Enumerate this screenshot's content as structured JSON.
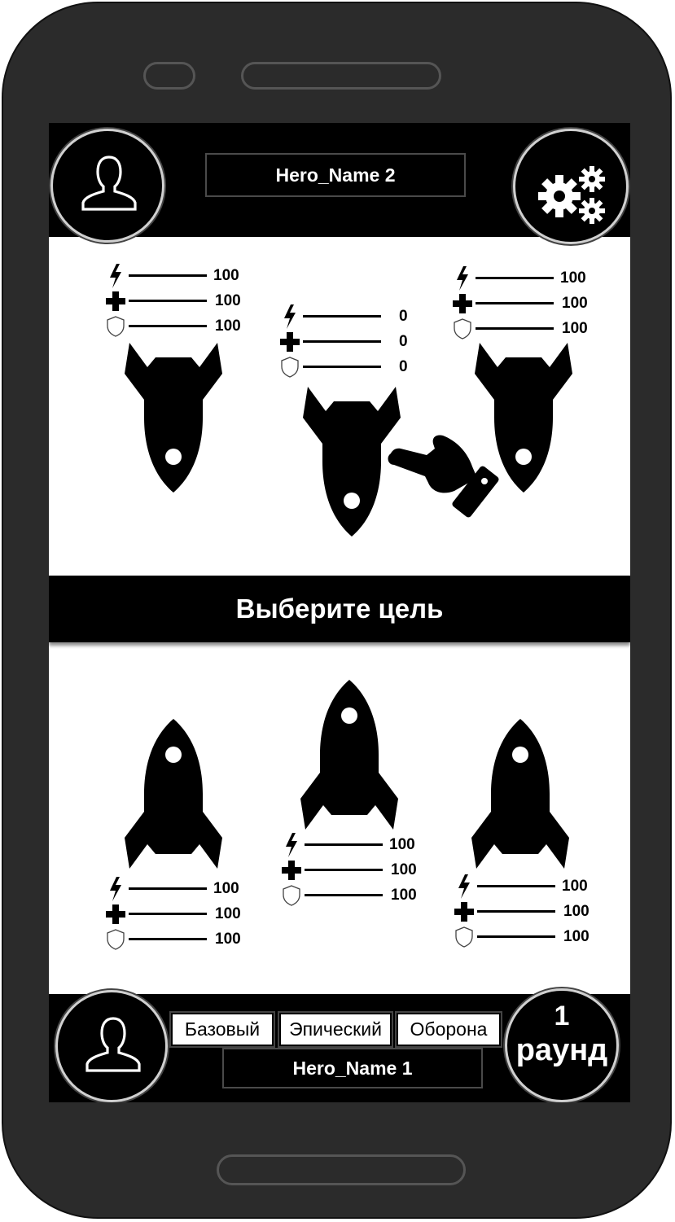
{
  "opponent": {
    "name": "Hero_Name 2"
  },
  "player": {
    "name": "Hero_Name 1"
  },
  "banner": {
    "text": "Выберите цель"
  },
  "enemy_ships": [
    {
      "attack": "100",
      "health": "100",
      "defense": "100"
    },
    {
      "attack": "0",
      "health": "0",
      "defense": "0"
    },
    {
      "attack": "100",
      "health": "100",
      "defense": "100"
    }
  ],
  "player_ships": [
    {
      "attack": "100",
      "health": "100",
      "defense": "100"
    },
    {
      "attack": "100",
      "health": "100",
      "defense": "100"
    },
    {
      "attack": "100",
      "health": "100",
      "defense": "100"
    }
  ],
  "attack_modes": {
    "basic": "Базовый",
    "epic": "Эпический",
    "defense": "Оборона"
  },
  "round": {
    "number": "1",
    "label": "раунд"
  },
  "icons": {
    "attack": "lightning-icon",
    "health": "plus-icon",
    "defense": "shield-icon",
    "profile": "user-icon",
    "settings": "gears-icon",
    "pointer": "pointing-hand-icon",
    "ship": "rocket-icon"
  },
  "colors": {
    "bar": "#000000",
    "screen": "#ffffff",
    "phone": "#2b2b2b"
  }
}
